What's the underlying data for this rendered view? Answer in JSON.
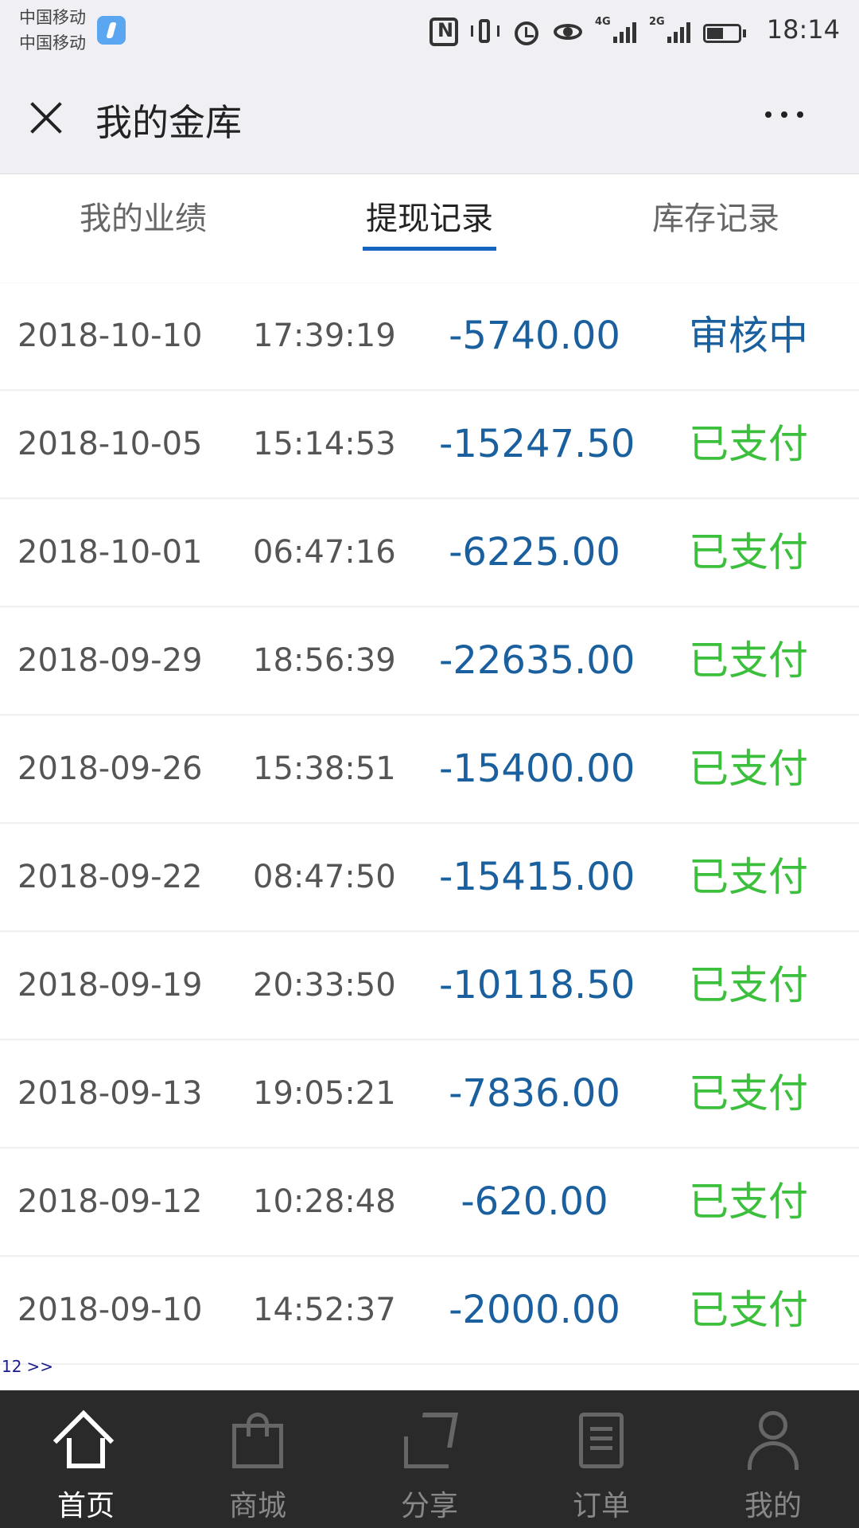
{
  "status_bar": {
    "carrier_1": "中国移动",
    "carrier_2": "中国移动",
    "signal_1": "4G",
    "signal_2": "2G",
    "time": "18:14"
  },
  "header": {
    "title": "我的金库"
  },
  "tabs": [
    {
      "label": "我的业绩",
      "active": false
    },
    {
      "label": "提现记录",
      "active": true
    },
    {
      "label": "库存记录",
      "active": false
    }
  ],
  "records": [
    {
      "date": "2018-10-10",
      "time": "17:39:19",
      "amount": "-5740.00",
      "status": "审核中",
      "status_color": "#1a5f9e"
    },
    {
      "date": "2018-10-05",
      "time": "15:14:53",
      "amount": "-15247.50",
      "status": "已支付",
      "status_color": "#3cbf3c"
    },
    {
      "date": "2018-10-01",
      "time": "06:47:16",
      "amount": "-6225.00",
      "status": "已支付",
      "status_color": "#3cbf3c"
    },
    {
      "date": "2018-09-29",
      "time": "18:56:39",
      "amount": "-22635.00",
      "status": "已支付",
      "status_color": "#3cbf3c"
    },
    {
      "date": "2018-09-26",
      "time": "15:38:51",
      "amount": "-15400.00",
      "status": "已支付",
      "status_color": "#3cbf3c"
    },
    {
      "date": "2018-09-22",
      "time": "08:47:50",
      "amount": "-15415.00",
      "status": "已支付",
      "status_color": "#3cbf3c"
    },
    {
      "date": "2018-09-19",
      "time": "20:33:50",
      "amount": "-10118.50",
      "status": "已支付",
      "status_color": "#3cbf3c"
    },
    {
      "date": "2018-09-13",
      "time": "19:05:21",
      "amount": "-7836.00",
      "status": "已支付",
      "status_color": "#3cbf3c"
    },
    {
      "date": "2018-09-12",
      "time": "10:28:48",
      "amount": "-620.00",
      "status": "已支付",
      "status_color": "#3cbf3c"
    },
    {
      "date": "2018-09-10",
      "time": "14:52:37",
      "amount": "-2000.00",
      "status": "已支付",
      "status_color": "#3cbf3c"
    }
  ],
  "pagination": {
    "pages": "12",
    "next": ">>"
  },
  "bottom_nav": [
    {
      "label": "首页",
      "icon": "home-icon",
      "active": true
    },
    {
      "label": "商城",
      "icon": "bag-icon",
      "active": false
    },
    {
      "label": "分享",
      "icon": "share-icon",
      "active": false
    },
    {
      "label": "订单",
      "icon": "order-icon",
      "active": false
    },
    {
      "label": "我的",
      "icon": "user-icon",
      "active": false
    }
  ]
}
